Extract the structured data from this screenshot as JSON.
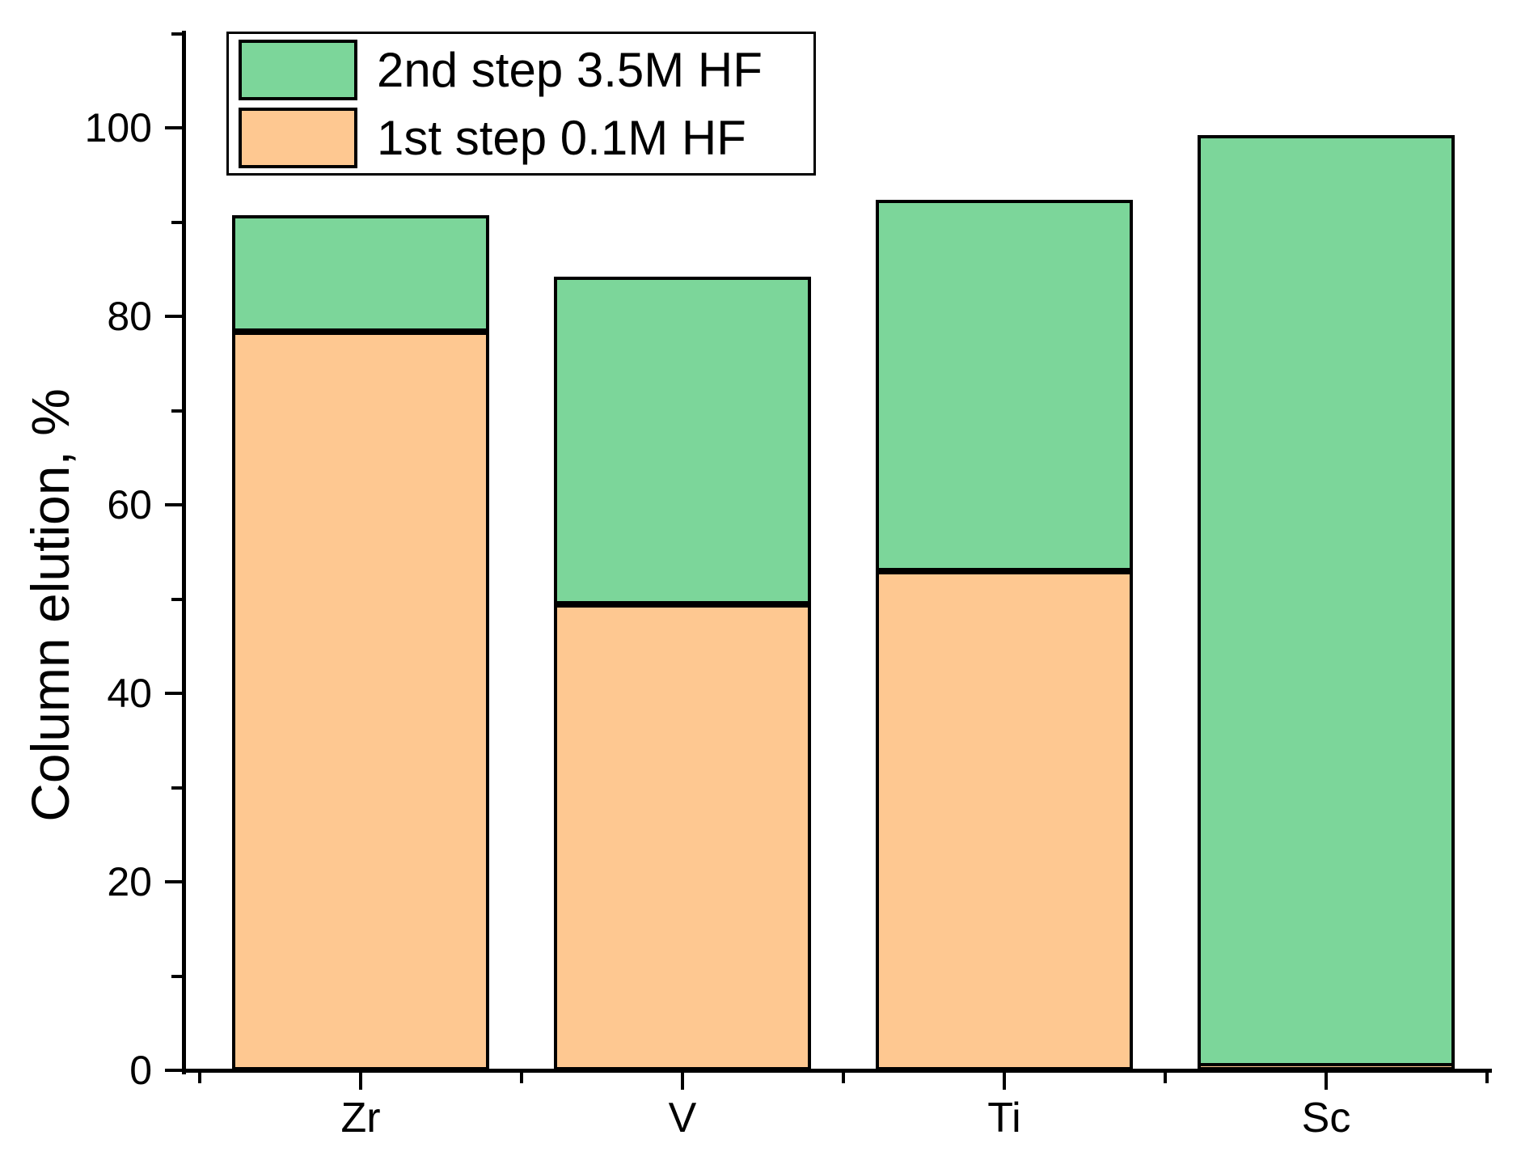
{
  "chart_data": {
    "type": "bar",
    "stacked": true,
    "title": "",
    "categories": [
      "Zr",
      "V",
      "Ti",
      "Sc"
    ],
    "series": [
      {
        "name": "1st step 0.1M HF",
        "color": "#FEC891",
        "values": [
          78.4,
          49.4,
          53.0,
          0.4
        ]
      },
      {
        "name": "2nd step 3.5M HF",
        "color": "#7CD69A",
        "values": [
          12.3,
          34.8,
          39.4,
          98.8
        ]
      }
    ],
    "stack_totals": [
      90.7,
      84.2,
      92.4,
      99.2
    ],
    "xlabel": "",
    "ylabel": "Column elution, %",
    "ylim": [
      0,
      110
    ],
    "y_major_ticks": [
      0,
      20,
      40,
      60,
      80,
      100
    ],
    "y_minor_ticks": [
      10,
      30,
      50,
      70,
      90,
      110
    ],
    "grid": false,
    "bar_border_color": "#000000",
    "axis_color": "#000000",
    "legend": {
      "position": "top-left",
      "items": [
        {
          "label": "2nd step 3.5M HF",
          "color": "#7CD69A"
        },
        {
          "label": "1st step 0.1M HF",
          "color": "#FEC891"
        }
      ]
    }
  }
}
